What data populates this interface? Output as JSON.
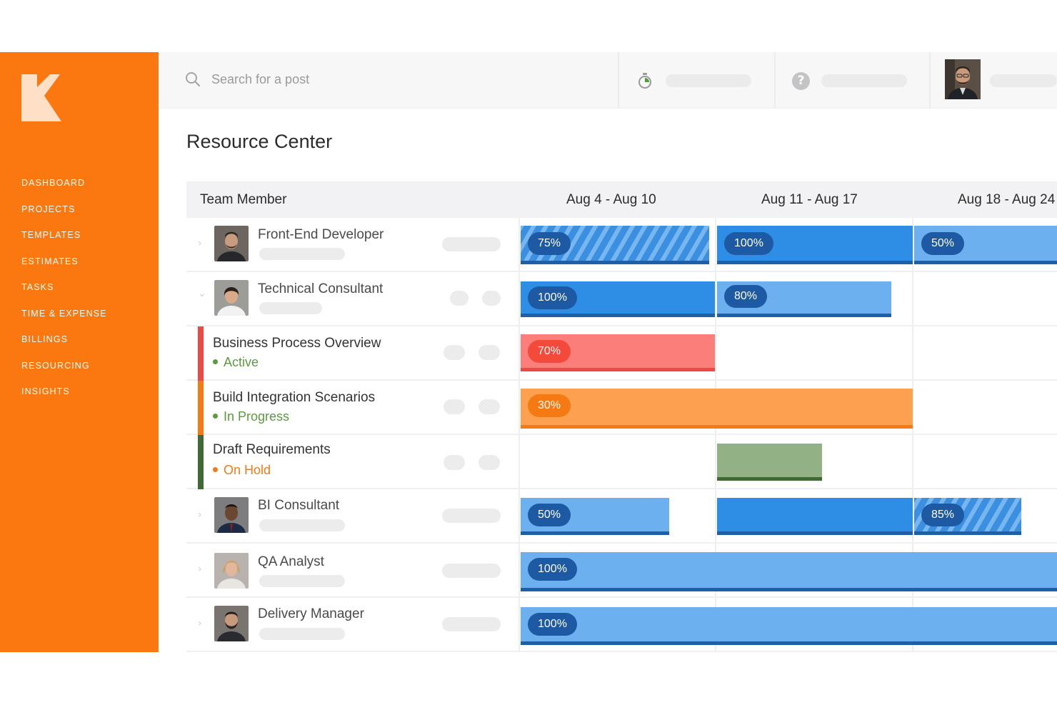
{
  "brand": {
    "accent": "#fa780f",
    "logo_icon": "k-logo-icon"
  },
  "sidebar": {
    "items": [
      {
        "label": "DASHBOARD"
      },
      {
        "label": "PROJECTS"
      },
      {
        "label": "TEMPLATES"
      },
      {
        "label": "ESTIMATES"
      },
      {
        "label": "TASKS"
      },
      {
        "label": "TIME & EXPENSE"
      },
      {
        "label": "BILLINGS"
      },
      {
        "label": "RESOURCING"
      },
      {
        "label": "INSIGHTS"
      }
    ]
  },
  "topbar": {
    "search_placeholder": "Search for a post",
    "search_icon": "search-icon",
    "timer_icon": "stopwatch-icon",
    "help_icon": "question-icon",
    "help_glyph": "?"
  },
  "main": {
    "title": "Resource Center",
    "columns": {
      "member": "Team Member",
      "weeks": [
        "Aug 4 - Aug 10",
        "Aug 11 - Aug 17",
        "Aug 18 - Aug 24"
      ]
    },
    "rows": [
      {
        "type": "member",
        "name": "Front-End Developer",
        "allocations": [
          "75%",
          "100%",
          "50%"
        ]
      },
      {
        "type": "member",
        "name": "Technical Consultant",
        "allocations": [
          "100%",
          "80%"
        ]
      },
      {
        "type": "task",
        "name": "Business Process Overview",
        "status": "Active",
        "status_color": "#5b9a3f",
        "accent": "#ee4845",
        "allocations": [
          "70%"
        ]
      },
      {
        "type": "task",
        "name": "Build Integration Scenarios",
        "status": "In Progress",
        "status_color": "#5b9a3f",
        "accent": "#f57a14",
        "allocations": [
          "30%"
        ]
      },
      {
        "type": "task",
        "name": "Draft Requirements",
        "status": "On Hold",
        "status_color": "#f57a14",
        "accent": "#3f6a36",
        "allocations": []
      },
      {
        "type": "member",
        "name": "BI Consultant",
        "allocations": [
          "50%",
          "85%"
        ]
      },
      {
        "type": "member",
        "name": "QA Analyst",
        "allocations": [
          "100%"
        ]
      },
      {
        "type": "member",
        "name": "Delivery Manager",
        "allocations": [
          "100%"
        ]
      }
    ]
  }
}
